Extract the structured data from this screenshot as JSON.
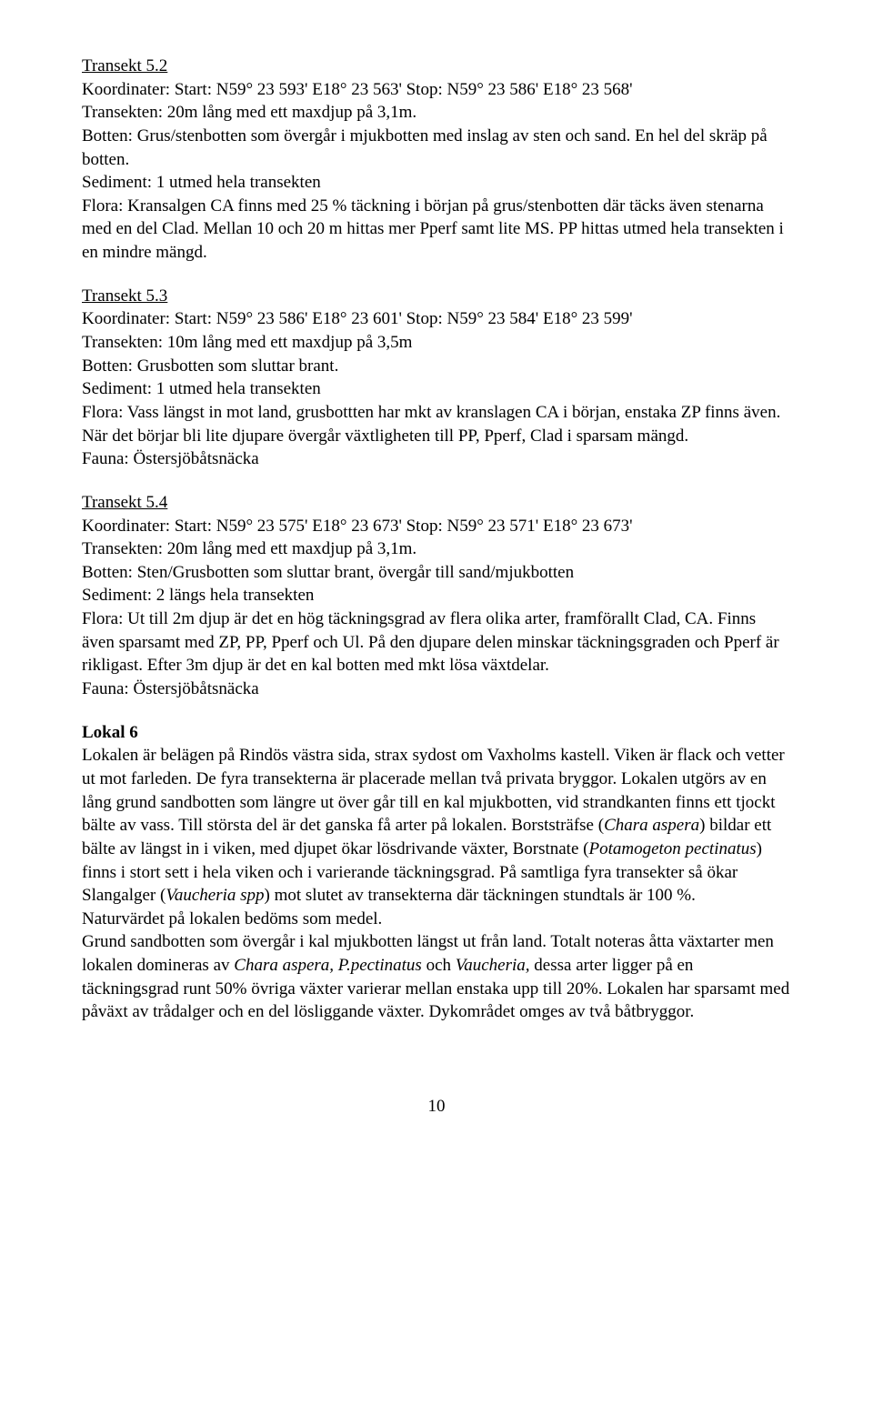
{
  "t52": {
    "title": "Transekt 5.2",
    "coord": "Koordinater: Start: N59° 23 593' E18° 23 563' Stop: N59° 23 586' E18° 23 568'",
    "transect": "Transekten: 20m lång med ett maxdjup på 3,1m.",
    "bottom": "Botten: Grus/stenbotten som övergår i mjukbotten med inslag av sten och sand. En hel del skräp på botten.",
    "sediment": "Sediment: 1 utmed hela transekten",
    "flora": "Flora: Kransalgen CA finns med 25 % täckning i början på grus/stenbotten där täcks även stenarna med en del Clad. Mellan 10 och 20 m hittas mer Pperf samt lite MS. PP hittas utmed hela transekten i en mindre mängd."
  },
  "t53": {
    "title": "Transekt 5.3",
    "coord": "Koordinater: Start: N59° 23 586' E18° 23 601' Stop: N59° 23 584' E18° 23 599'",
    "transect": "Transekten: 10m lång med ett maxdjup på 3,5m",
    "bottom": "Botten: Grusbotten som sluttar brant.",
    "sediment": "Sediment: 1 utmed hela transekten",
    "flora": "Flora: Vass längst in mot land, grusbottten har mkt av kranslagen CA i början, enstaka ZP finns även. När det börjar bli lite djupare övergår växtligheten till PP, Pperf, Clad i sparsam mängd.",
    "fauna": "Fauna: Östersjöbåtsnäcka"
  },
  "t54": {
    "title": "Transekt 5.4",
    "coord": "Koordinater: Start: N59° 23 575' E18° 23 673' Stop: N59° 23 571' E18° 23 673'",
    "transect": "Transekten: 20m lång med ett maxdjup på 3,1m.",
    "bottom": "Botten: Sten/Grusbotten som sluttar brant, övergår till sand/mjukbotten",
    "sediment": "Sediment: 2 längs hela transekten",
    "flora": "Flora: Ut till 2m djup är det en hög täckningsgrad av flera olika arter, framförallt Clad, CA. Finns även sparsamt med ZP, PP, Pperf och Ul. På den djupare delen minskar täckningsgraden och Pperf är rikligast. Efter 3m djup är det en kal botten med mkt lösa växtdelar.",
    "fauna": "Fauna: Östersjöbåtsnäcka"
  },
  "lokal6": {
    "title": "Lokal 6",
    "p1a": "Lokalen är belägen på Rindös västra sida, strax sydost om Vaxholms kastell. Viken är flack och vetter ut mot farleden. De fyra transekterna är placerade mellan två privata bryggor. Lokalen utgörs av en lång grund sandbotten som längre ut över går till en kal mjukbotten, vid strandkanten finns ett tjockt bälte av vass. Till största del är det ganska få arter på lokalen. Borststräfse (",
    "p1_i1": "Chara aspera",
    "p1b": ") bildar ett bälte av längst in i viken, med djupet ökar lösdrivande växter, Borstnate (",
    "p1_i2": "Potamogeton pectinatus",
    "p1c": ") finns i stort sett i hela viken och i varierande täckningsgrad. På samtliga fyra transekter så ökar Slangalger (",
    "p1_i3": "Vaucheria spp",
    "p1d": ") mot slutet av transekterna där täckningen stundtals är 100 %.",
    "p2": "Naturvärdet på lokalen bedöms som medel.",
    "p3a": "Grund sandbotten som övergår i kal mjukbotten längst ut från land. Totalt noteras åtta växtarter men lokalen domineras av ",
    "p3_i1": "Chara aspera, P.pectinatus",
    "p3b": " och ",
    "p3_i2": "Vaucheria,",
    "p3c": " dessa arter ligger på en täckningsgrad runt 50% övriga växter varierar mellan enstaka upp till 20%. Lokalen har sparsamt med påväxt av trådalger och en del lösliggande växter. Dykområdet omges av två båtbryggor."
  },
  "page_number": "10"
}
